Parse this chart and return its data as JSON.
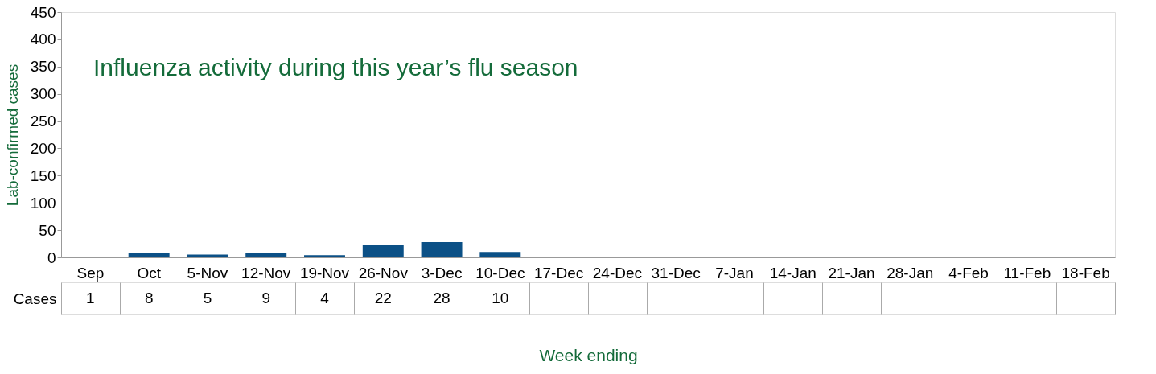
{
  "chart_data": {
    "type": "bar",
    "ylabel": "Lab-confirmed cases",
    "xlabel": "Week ending",
    "annotations": [
      "Influenza activity during this year’s flu season"
    ],
    "categories": [
      "Sep",
      "Oct",
      "5-Nov",
      "12-Nov",
      "19-Nov",
      "26-Nov",
      "3-Dec",
      "10-Dec",
      "17-Dec",
      "24-Dec",
      "31-Dec",
      "7-Jan",
      "14-Jan",
      "21-Jan",
      "28-Jan",
      "4-Feb",
      "11-Feb",
      "18-Feb"
    ],
    "series": [
      {
        "name": "Cases",
        "color": "#0b5086",
        "values": [
          1,
          8,
          5,
          9,
          4,
          22,
          28,
          10,
          null,
          null,
          null,
          null,
          null,
          null,
          null,
          null,
          null,
          null
        ]
      }
    ],
    "ylim": [
      0,
      450
    ],
    "yticks": [
      0,
      50,
      100,
      150,
      200,
      250,
      300,
      350,
      400,
      450
    ],
    "data_labels": true,
    "grid": false
  }
}
